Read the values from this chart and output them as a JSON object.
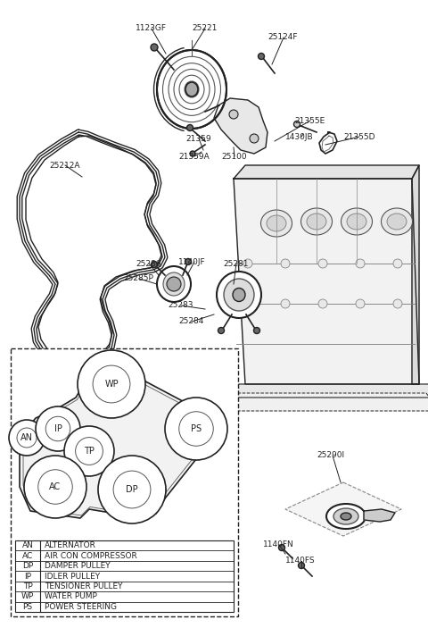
{
  "bg_color": "#ffffff",
  "fig_width": 4.8,
  "fig_height": 7.03,
  "dpi": 100,
  "legend_entries": [
    [
      "AN",
      "ALTERNATOR"
    ],
    [
      "AC",
      "AIR CON COMPRESSOR"
    ],
    [
      "DP",
      "DAMPER PULLEY"
    ],
    [
      "IP",
      "IDLER PULLEY"
    ],
    [
      "TP",
      "TENSIONER PULLEY"
    ],
    [
      "WP",
      "WATER PUMP"
    ],
    [
      "PS",
      "POWER STEERING"
    ]
  ]
}
